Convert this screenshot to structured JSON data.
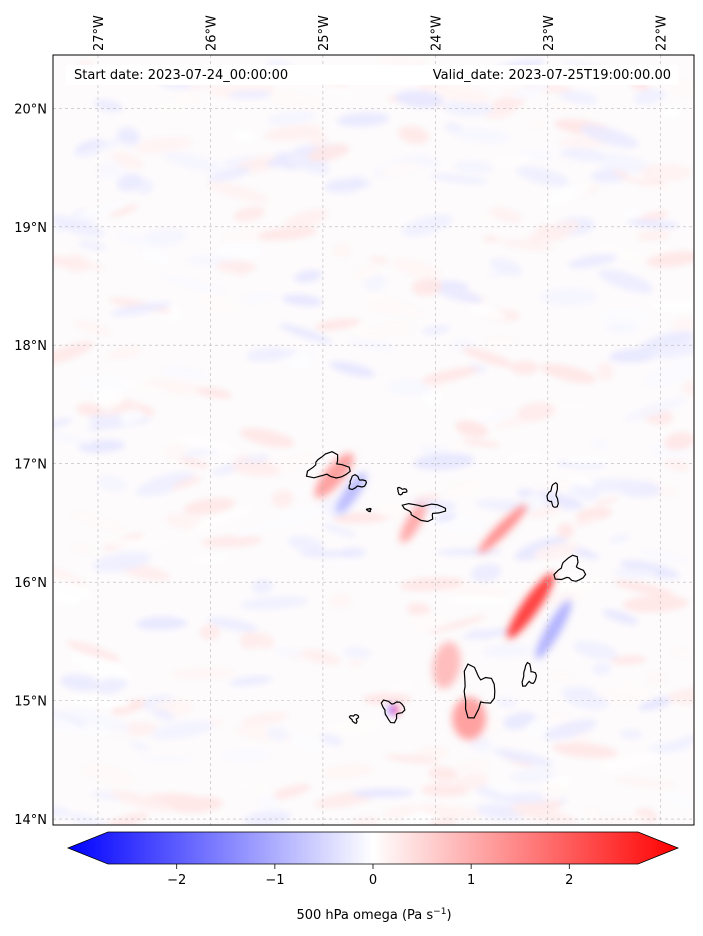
{
  "map": {
    "start_date_text": "Start date: 2023-07-24_00:00:00",
    "valid_date_text": "Valid_date: 2023-07-25T19:00:00.00",
    "lon_range": [
      -27.4,
      -21.7
    ],
    "lat_range": [
      13.95,
      20.45
    ],
    "lon_ticks": [
      {
        "value": -27,
        "label": "27°W"
      },
      {
        "value": -26,
        "label": "26°W"
      },
      {
        "value": -25,
        "label": "25°W"
      },
      {
        "value": -24,
        "label": "24°W"
      },
      {
        "value": -23,
        "label": "23°W"
      },
      {
        "value": -22,
        "label": "22°W"
      }
    ],
    "lat_ticks": [
      {
        "value": 20,
        "label": "20°N"
      },
      {
        "value": 19,
        "label": "19°N"
      },
      {
        "value": 18,
        "label": "18°N"
      },
      {
        "value": 17,
        "label": "17°N"
      },
      {
        "value": 16,
        "label": "16°N"
      },
      {
        "value": 15,
        "label": "15°N"
      },
      {
        "value": 14,
        "label": "14°N"
      }
    ],
    "gridlines": "dashed",
    "islands": [
      {
        "name": "Santo Antao",
        "lon": -24.95,
        "lat": 16.97,
        "rx": 0.2,
        "ry": 0.12
      },
      {
        "name": "Sao Vicente",
        "lon": -24.7,
        "lat": 16.84,
        "rx": 0.09,
        "ry": 0.06
      },
      {
        "name": "Santa Luzia",
        "lon": -24.3,
        "lat": 16.77,
        "rx": 0.05,
        "ry": 0.03
      },
      {
        "name": "Sao Nicolau",
        "lon": -24.1,
        "lat": 16.6,
        "rx": 0.2,
        "ry": 0.08
      },
      {
        "name": "Branco",
        "lon": -24.59,
        "lat": 16.61,
        "rx": 0.02,
        "ry": 0.015
      },
      {
        "name": "Sal",
        "lon": -22.95,
        "lat": 16.73,
        "rx": 0.05,
        "ry": 0.12
      },
      {
        "name": "Boa Vista",
        "lon": -22.8,
        "lat": 16.1,
        "rx": 0.14,
        "ry": 0.12
      },
      {
        "name": "Maio",
        "lon": -23.17,
        "lat": 15.21,
        "rx": 0.07,
        "ry": 0.1
      },
      {
        "name": "Santiago",
        "lon": -23.63,
        "lat": 15.08,
        "rx": 0.17,
        "ry": 0.22
      },
      {
        "name": "Fogo",
        "lon": -24.38,
        "lat": 14.92,
        "rx": 0.11,
        "ry": 0.1
      },
      {
        "name": "Brava",
        "lon": -24.72,
        "lat": 14.85,
        "rx": 0.04,
        "ry": 0.04
      }
    ],
    "field_features": [
      {
        "lon": -24.9,
        "lat": 16.9,
        "value": 1.0,
        "lonSpread": 0.25,
        "latSpread": 0.08,
        "angle": -50
      },
      {
        "lon": -24.75,
        "lat": 16.75,
        "value": -0.7,
        "lonSpread": 0.22,
        "latSpread": 0.06,
        "angle": -55
      },
      {
        "lon": -23.15,
        "lat": 15.8,
        "value": 2.0,
        "lonSpread": 0.35,
        "latSpread": 0.07,
        "angle": -55
      },
      {
        "lon": -22.95,
        "lat": 15.6,
        "value": -0.8,
        "lonSpread": 0.3,
        "latSpread": 0.06,
        "angle": -60
      },
      {
        "lon": -23.4,
        "lat": 16.45,
        "value": 1.2,
        "lonSpread": 0.3,
        "latSpread": 0.05,
        "angle": -45
      },
      {
        "lon": -23.7,
        "lat": 14.85,
        "value": 1.0,
        "lonSpread": 0.15,
        "latSpread": 0.18,
        "angle": 0
      },
      {
        "lon": -24.39,
        "lat": 14.92,
        "value": -2.3,
        "lonSpread": 0.02,
        "latSpread": 0.04,
        "angle": 0
      },
      {
        "lon": -24.35,
        "lat": 14.92,
        "value": 2.4,
        "lonSpread": 0.02,
        "latSpread": 0.04,
        "angle": 0
      },
      {
        "lon": -24.2,
        "lat": 16.5,
        "value": 0.9,
        "lonSpread": 0.2,
        "latSpread": 0.06,
        "angle": -60
      },
      {
        "lon": -23.9,
        "lat": 15.3,
        "value": 0.7,
        "lonSpread": 0.12,
        "latSpread": 0.2,
        "angle": 10
      }
    ]
  },
  "colorbar": {
    "min": -2.7,
    "max": 2.7,
    "ticks": [
      {
        "value": -2,
        "label": "−2"
      },
      {
        "value": -1,
        "label": "−1"
      },
      {
        "value": 0,
        "label": "0"
      },
      {
        "value": 1,
        "label": "1"
      },
      {
        "value": 2,
        "label": "2"
      }
    ],
    "label_main": "500 hPa omega (Pa s",
    "label_sup": "−1",
    "label_end": ")",
    "color_low": "#0000ff",
    "color_mid": "#ffffff",
    "color_high": "#ff0000"
  }
}
